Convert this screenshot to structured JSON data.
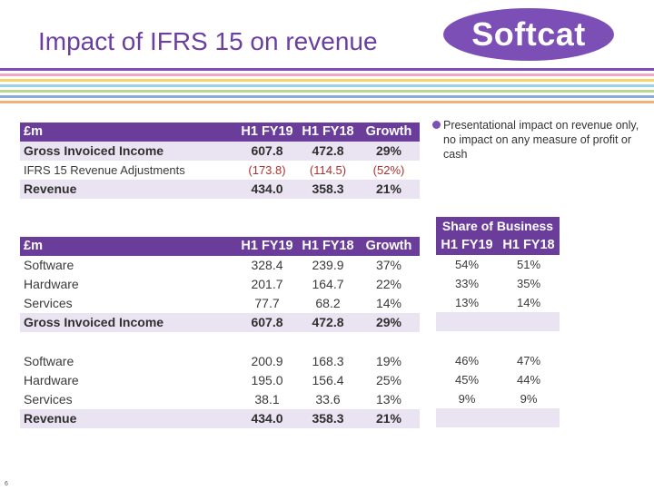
{
  "title": "Impact of IFRS 15 on revenue",
  "logo_text": "Softcat",
  "colors": {
    "accent": "#6a3d9a",
    "band": "#eae3f2",
    "negative": "#b03030",
    "stripes": [
      "#7b4fb5",
      "#f2a7c9",
      "#f7d36b",
      "#9ad1e6",
      "#b7d98b",
      "#8aa8e0",
      "#f0b27a"
    ]
  },
  "table1": {
    "headers": [
      "£m",
      "H1 FY19",
      "H1 FY18",
      "Growth"
    ],
    "rows": [
      {
        "label": "Gross Invoiced Income",
        "values": [
          "607.8",
          "472.8",
          "29%"
        ]
      },
      {
        "label": "IFRS 15 Revenue Adjustments",
        "values": [
          "(173.8)",
          "(114.5)",
          "(52%)"
        ]
      },
      {
        "label": "Revenue",
        "values": [
          "434.0",
          "358.3",
          "21%"
        ]
      }
    ]
  },
  "bullet": "Presentational impact on revenue only, no impact on any measure of profit or cash",
  "table2": {
    "headers": [
      "£m",
      "H1 FY19",
      "H1 FY18",
      "Growth"
    ],
    "gii_rows": [
      {
        "label": "Software",
        "values": [
          "328.4",
          "239.9",
          "37%"
        ]
      },
      {
        "label": "Hardware",
        "values": [
          "201.7",
          "164.7",
          "22%"
        ]
      },
      {
        "label": "Services",
        "values": [
          "77.7",
          "68.2",
          "14%"
        ]
      }
    ],
    "gii_total": {
      "label": "Gross Invoiced Income",
      "values": [
        "607.8",
        "472.8",
        "29%"
      ]
    },
    "rev_rows": [
      {
        "label": "Software",
        "values": [
          "200.9",
          "168.3",
          "19%"
        ]
      },
      {
        "label": "Hardware",
        "values": [
          "195.0",
          "156.4",
          "25%"
        ]
      },
      {
        "label": "Services",
        "values": [
          "38.1",
          "33.6",
          "13%"
        ]
      }
    ],
    "rev_total": {
      "label": "Revenue",
      "values": [
        "434.0",
        "358.3",
        "21%"
      ]
    }
  },
  "share": {
    "title": "Share of Business",
    "headers": [
      "H1 FY19",
      "H1 FY18"
    ],
    "gii": [
      [
        "54%",
        "51%"
      ],
      [
        "33%",
        "35%"
      ],
      [
        "13%",
        "14%"
      ]
    ],
    "rev": [
      [
        "46%",
        "47%"
      ],
      [
        "45%",
        "44%"
      ],
      [
        "9%",
        "9%"
      ]
    ]
  },
  "page_number": "6"
}
